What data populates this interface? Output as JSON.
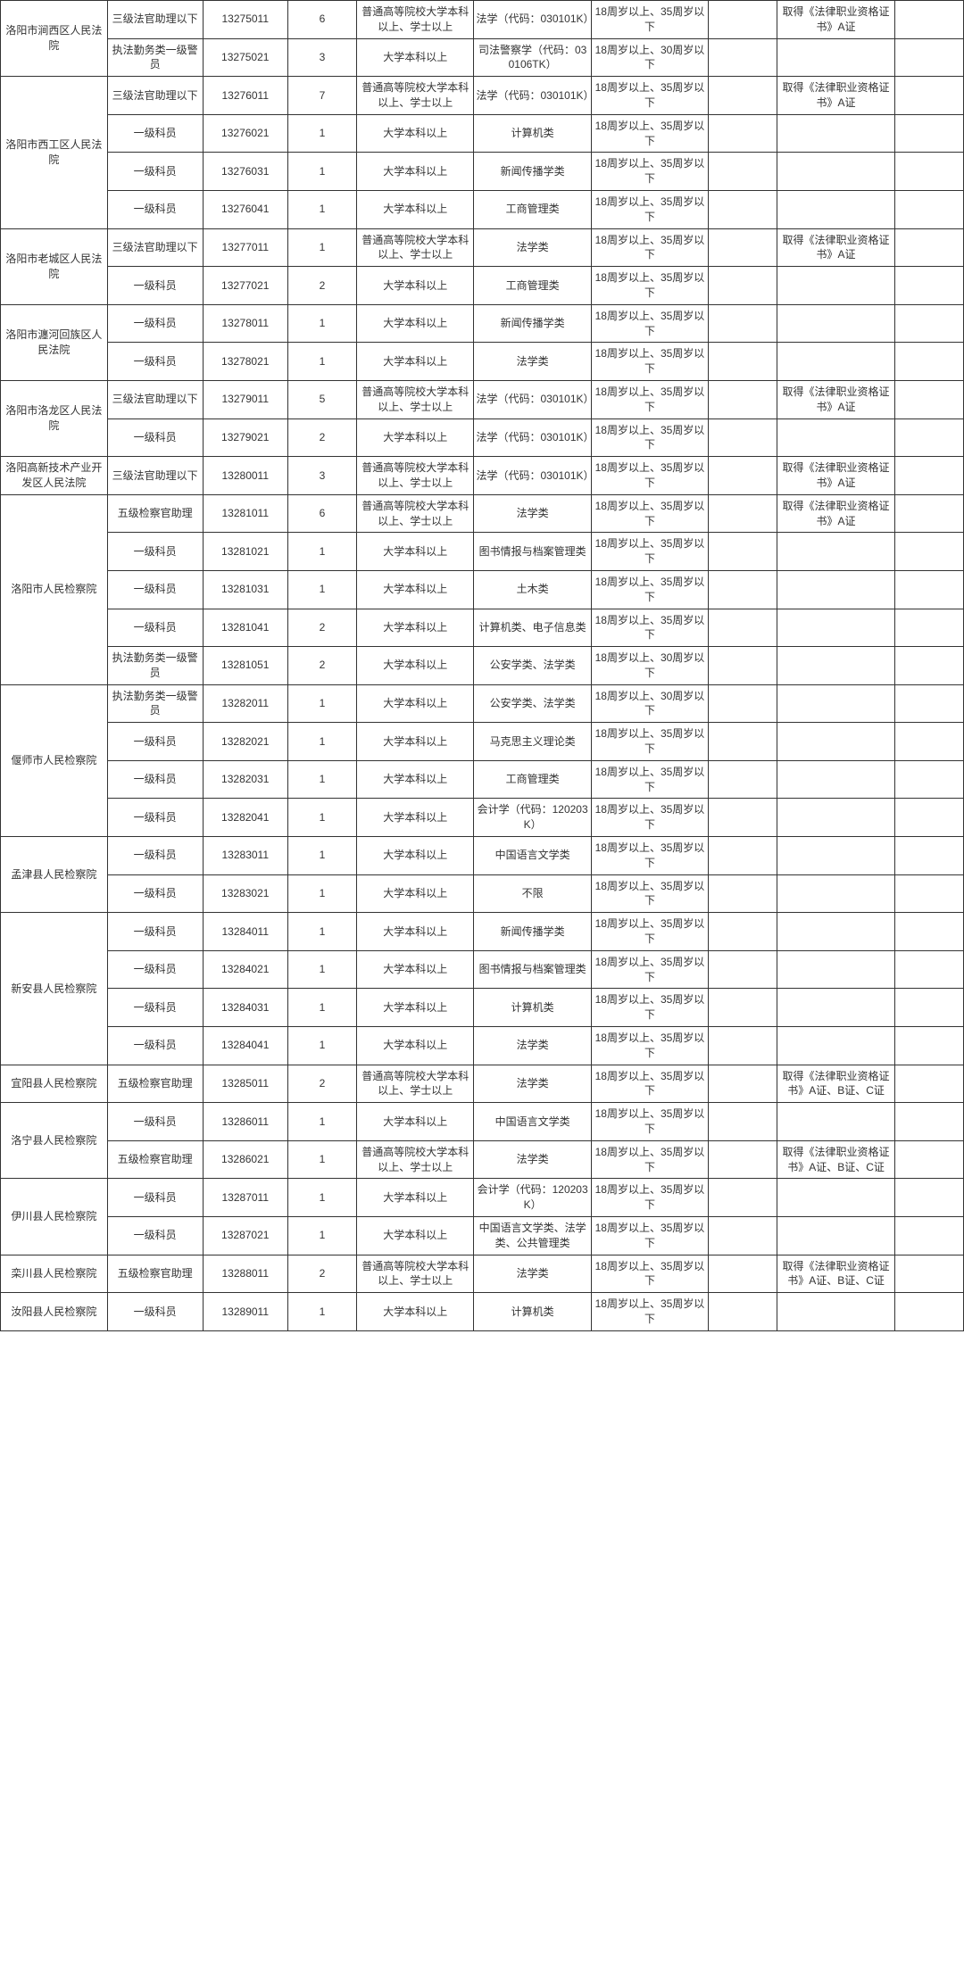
{
  "col_widths": [
    "9.3%",
    "8.3%",
    "7.4%",
    "6.0%",
    "10.2%",
    "10.2%",
    "10.2%",
    "6.0%",
    "10.2%",
    "6.0%"
  ],
  "groups": [
    {
      "unit": "洛阳市涧西区人民法院",
      "rows": [
        {
          "c1": "三级法官助理以下",
          "c2": "13275011",
          "c3": "6",
          "c4": "普通高等院校大学本科以上、学士以上",
          "c5": "法学（代码：030101K）",
          "c6": "18周岁以上、35周岁以下",
          "c7": "",
          "c8": "取得《法律职业资格证书》A证",
          "c9": ""
        },
        {
          "c1": "执法勤务类一级警员",
          "c2": "13275021",
          "c3": "3",
          "c4": "大学本科以上",
          "c5": "司法警察学（代码：030106TK）",
          "c6": "18周岁以上、30周岁以下",
          "c7": "",
          "c8": "",
          "c9": ""
        }
      ]
    },
    {
      "unit": "洛阳市西工区人民法院",
      "rows": [
        {
          "c1": "三级法官助理以下",
          "c2": "13276011",
          "c3": "7",
          "c4": "普通高等院校大学本科以上、学士以上",
          "c5": "法学（代码：030101K）",
          "c6": "18周岁以上、35周岁以下",
          "c7": "",
          "c8": "取得《法律职业资格证书》A证",
          "c9": ""
        },
        {
          "c1": "一级科员",
          "c2": "13276021",
          "c3": "1",
          "c4": "大学本科以上",
          "c5": "计算机类",
          "c6": "18周岁以上、35周岁以下",
          "c7": "",
          "c8": "",
          "c9": ""
        },
        {
          "c1": "一级科员",
          "c2": "13276031",
          "c3": "1",
          "c4": "大学本科以上",
          "c5": "新闻传播学类",
          "c6": "18周岁以上、35周岁以下",
          "c7": "",
          "c8": "",
          "c9": ""
        },
        {
          "c1": "一级科员",
          "c2": "13276041",
          "c3": "1",
          "c4": "大学本科以上",
          "c5": "工商管理类",
          "c6": "18周岁以上、35周岁以下",
          "c7": "",
          "c8": "",
          "c9": ""
        }
      ]
    },
    {
      "unit": "洛阳市老城区人民法院",
      "rows": [
        {
          "c1": "三级法官助理以下",
          "c2": "13277011",
          "c3": "1",
          "c4": "普通高等院校大学本科以上、学士以上",
          "c5": "法学类",
          "c6": "18周岁以上、35周岁以下",
          "c7": "",
          "c8": "取得《法律职业资格证书》A证",
          "c9": ""
        },
        {
          "c1": "一级科员",
          "c2": "13277021",
          "c3": "2",
          "c4": "大学本科以上",
          "c5": "工商管理类",
          "c6": "18周岁以上、35周岁以下",
          "c7": "",
          "c8": "",
          "c9": ""
        }
      ]
    },
    {
      "unit": "洛阳市瀍河回族区人民法院",
      "rows": [
        {
          "c1": "一级科员",
          "c2": "13278011",
          "c3": "1",
          "c4": "大学本科以上",
          "c5": "新闻传播学类",
          "c6": "18周岁以上、35周岁以下",
          "c7": "",
          "c8": "",
          "c9": ""
        },
        {
          "c1": "一级科员",
          "c2": "13278021",
          "c3": "1",
          "c4": "大学本科以上",
          "c5": "法学类",
          "c6": "18周岁以上、35周岁以下",
          "c7": "",
          "c8": "",
          "c9": ""
        }
      ]
    },
    {
      "unit": "洛阳市洛龙区人民法院",
      "rows": [
        {
          "c1": "三级法官助理以下",
          "c2": "13279011",
          "c3": "5",
          "c4": "普通高等院校大学本科以上、学士以上",
          "c5": "法学（代码：030101K）",
          "c6": "18周岁以上、35周岁以下",
          "c7": "",
          "c8": "取得《法律职业资格证书》A证",
          "c9": ""
        },
        {
          "c1": "一级科员",
          "c2": "13279021",
          "c3": "2",
          "c4": "大学本科以上",
          "c5": "法学（代码：030101K）",
          "c6": "18周岁以上、35周岁以下",
          "c7": "",
          "c8": "",
          "c9": ""
        }
      ]
    },
    {
      "unit": "洛阳高新技术产业开发区人民法院",
      "rows": [
        {
          "c1": "三级法官助理以下",
          "c2": "13280011",
          "c3": "3",
          "c4": "普通高等院校大学本科以上、学士以上",
          "c5": "法学（代码：030101K）",
          "c6": "18周岁以上、35周岁以下",
          "c7": "",
          "c8": "取得《法律职业资格证书》A证",
          "c9": ""
        }
      ]
    },
    {
      "unit": "洛阳市人民检察院",
      "rows": [
        {
          "c1": "五级检察官助理",
          "c2": "13281011",
          "c3": "6",
          "c4": "普通高等院校大学本科以上、学士以上",
          "c5": "法学类",
          "c6": "18周岁以上、35周岁以下",
          "c7": "",
          "c8": "取得《法律职业资格证书》A证",
          "c9": ""
        },
        {
          "c1": "一级科员",
          "c2": "13281021",
          "c3": "1",
          "c4": "大学本科以上",
          "c5": "图书情报与档案管理类",
          "c6": "18周岁以上、35周岁以下",
          "c7": "",
          "c8": "",
          "c9": ""
        },
        {
          "c1": "一级科员",
          "c2": "13281031",
          "c3": "1",
          "c4": "大学本科以上",
          "c5": "土木类",
          "c6": "18周岁以上、35周岁以下",
          "c7": "",
          "c8": "",
          "c9": ""
        },
        {
          "c1": "一级科员",
          "c2": "13281041",
          "c3": "2",
          "c4": "大学本科以上",
          "c5": "计算机类、电子信息类",
          "c6": "18周岁以上、35周岁以下",
          "c7": "",
          "c8": "",
          "c9": ""
        },
        {
          "c1": "执法勤务类一级警员",
          "c2": "13281051",
          "c3": "2",
          "c4": "大学本科以上",
          "c5": "公安学类、法学类",
          "c6": "18周岁以上、30周岁以下",
          "c7": "",
          "c8": "",
          "c9": ""
        }
      ]
    },
    {
      "unit": "偃师市人民检察院",
      "rows": [
        {
          "c1": "执法勤务类一级警员",
          "c2": "13282011",
          "c3": "1",
          "c4": "大学本科以上",
          "c5": "公安学类、法学类",
          "c6": "18周岁以上、30周岁以下",
          "c7": "",
          "c8": "",
          "c9": ""
        },
        {
          "c1": "一级科员",
          "c2": "13282021",
          "c3": "1",
          "c4": "大学本科以上",
          "c5": "马克思主义理论类",
          "c6": "18周岁以上、35周岁以下",
          "c7": "",
          "c8": "",
          "c9": ""
        },
        {
          "c1": "一级科员",
          "c2": "13282031",
          "c3": "1",
          "c4": "大学本科以上",
          "c5": "工商管理类",
          "c6": "18周岁以上、35周岁以下",
          "c7": "",
          "c8": "",
          "c9": ""
        },
        {
          "c1": "一级科员",
          "c2": "13282041",
          "c3": "1",
          "c4": "大学本科以上",
          "c5": "会计学（代码：120203K）",
          "c6": "18周岁以上、35周岁以下",
          "c7": "",
          "c8": "",
          "c9": ""
        }
      ]
    },
    {
      "unit": "孟津县人民检察院",
      "rows": [
        {
          "c1": "一级科员",
          "c2": "13283011",
          "c3": "1",
          "c4": "大学本科以上",
          "c5": "中国语言文学类",
          "c6": "18周岁以上、35周岁以下",
          "c7": "",
          "c8": "",
          "c9": ""
        },
        {
          "c1": "一级科员",
          "c2": "13283021",
          "c3": "1",
          "c4": "大学本科以上",
          "c5": "不限",
          "c6": "18周岁以上、35周岁以下",
          "c7": "",
          "c8": "",
          "c9": ""
        }
      ]
    },
    {
      "unit": "新安县人民检察院",
      "rows": [
        {
          "c1": "一级科员",
          "c2": "13284011",
          "c3": "1",
          "c4": "大学本科以上",
          "c5": "新闻传播学类",
          "c6": "18周岁以上、35周岁以下",
          "c7": "",
          "c8": "",
          "c9": ""
        },
        {
          "c1": "一级科员",
          "c2": "13284021",
          "c3": "1",
          "c4": "大学本科以上",
          "c5": "图书情报与档案管理类",
          "c6": "18周岁以上、35周岁以下",
          "c7": "",
          "c8": "",
          "c9": ""
        },
        {
          "c1": "一级科员",
          "c2": "13284031",
          "c3": "1",
          "c4": "大学本科以上",
          "c5": "计算机类",
          "c6": "18周岁以上、35周岁以下",
          "c7": "",
          "c8": "",
          "c9": ""
        },
        {
          "c1": "一级科员",
          "c2": "13284041",
          "c3": "1",
          "c4": "大学本科以上",
          "c5": "法学类",
          "c6": "18周岁以上、35周岁以下",
          "c7": "",
          "c8": "",
          "c9": ""
        }
      ]
    },
    {
      "unit": "宜阳县人民检察院",
      "rows": [
        {
          "c1": "五级检察官助理",
          "c2": "13285011",
          "c3": "2",
          "c4": "普通高等院校大学本科以上、学士以上",
          "c5": "法学类",
          "c6": "18周岁以上、35周岁以下",
          "c7": "",
          "c8": "取得《法律职业资格证书》A证、B证、C证",
          "c9": ""
        }
      ]
    },
    {
      "unit": "洛宁县人民检察院",
      "rows": [
        {
          "c1": "一级科员",
          "c2": "13286011",
          "c3": "1",
          "c4": "大学本科以上",
          "c5": "中国语言文学类",
          "c6": "18周岁以上、35周岁以下",
          "c7": "",
          "c8": "",
          "c9": ""
        },
        {
          "c1": "五级检察官助理",
          "c2": "13286021",
          "c3": "1",
          "c4": "普通高等院校大学本科以上、学士以上",
          "c5": "法学类",
          "c6": "18周岁以上、35周岁以下",
          "c7": "",
          "c8": "取得《法律职业资格证书》A证、B证、C证",
          "c9": ""
        }
      ]
    },
    {
      "unit": "伊川县人民检察院",
      "rows": [
        {
          "c1": "一级科员",
          "c2": "13287011",
          "c3": "1",
          "c4": "大学本科以上",
          "c5": "会计学（代码：120203K）",
          "c6": "18周岁以上、35周岁以下",
          "c7": "",
          "c8": "",
          "c9": ""
        },
        {
          "c1": "一级科员",
          "c2": "13287021",
          "c3": "1",
          "c4": "大学本科以上",
          "c5": "中国语言文学类、法学类、公共管理类",
          "c6": "18周岁以上、35周岁以下",
          "c7": "",
          "c8": "",
          "c9": ""
        }
      ]
    },
    {
      "unit": "栾川县人民检察院",
      "rows": [
        {
          "c1": "五级检察官助理",
          "c2": "13288011",
          "c3": "2",
          "c4": "普通高等院校大学本科以上、学士以上",
          "c5": "法学类",
          "c6": "18周岁以上、35周岁以下",
          "c7": "",
          "c8": "取得《法律职业资格证书》A证、B证、C证",
          "c9": ""
        }
      ]
    },
    {
      "unit": "汝阳县人民检察院",
      "rows": [
        {
          "c1": "一级科员",
          "c2": "13289011",
          "c3": "1",
          "c4": "大学本科以上",
          "c5": "计算机类",
          "c6": "18周岁以上、35周岁以下",
          "c7": "",
          "c8": "",
          "c9": ""
        }
      ]
    }
  ]
}
